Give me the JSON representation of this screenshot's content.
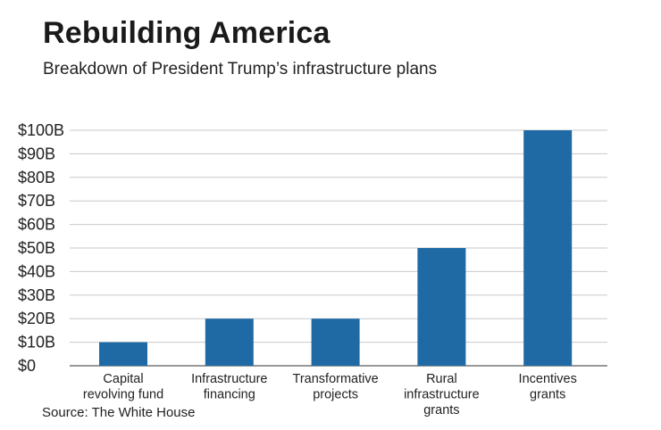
{
  "chart_data": {
    "type": "bar",
    "title": "Rebuilding America",
    "subtitle": "Breakdown of President Trump’s infrastructure plans",
    "source": "Source: The White House",
    "categories": [
      [
        "Capital",
        "revolving fund"
      ],
      [
        "Infrastructure",
        "financing"
      ],
      [
        "Transformative",
        "projects"
      ],
      [
        "Rural",
        "infrastructure",
        "grants"
      ],
      [
        "Incentives",
        "grants"
      ]
    ],
    "values": [
      10,
      20,
      20,
      50,
      100
    ],
    "unit": "billion USD",
    "ylim": [
      0,
      100
    ],
    "yticks": [
      0,
      10,
      20,
      30,
      40,
      50,
      60,
      70,
      80,
      90,
      100
    ],
    "ytick_labels": [
      "$0",
      "$10B",
      "$20B",
      "$30B",
      "$40B",
      "$50B",
      "$60B",
      "$70B",
      "$80B",
      "$90B",
      "$100B"
    ],
    "xlabel": "",
    "ylabel": "",
    "grid": true,
    "colors": {
      "bar": "#1f6aa5",
      "grid": "#c8c8c8",
      "axis": "#777777"
    }
  }
}
